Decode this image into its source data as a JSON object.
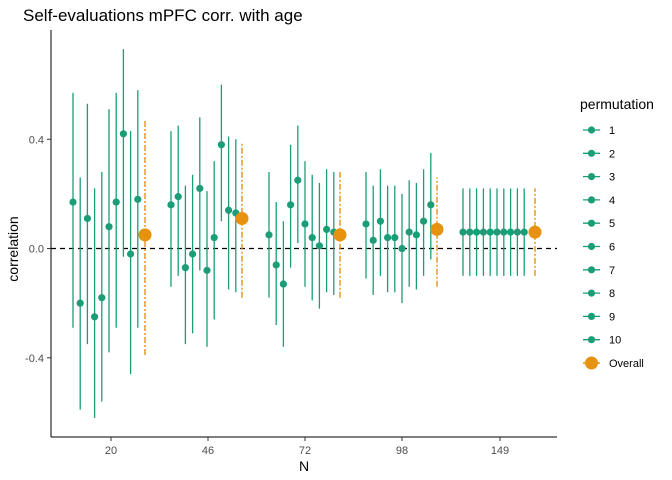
{
  "chart_data": {
    "type": "scatter",
    "title": "Self-evaluations mPFC corr. with age",
    "xlabel": "N",
    "ylabel": "correlation",
    "categories": [
      "20",
      "46",
      "72",
      "98",
      "149"
    ],
    "y_ticks": [
      -0.4,
      0.0,
      0.4
    ],
    "y_tick_labels": [
      "-0.4",
      "0.0",
      "0.4"
    ],
    "ylim": [
      -0.69,
      0.8
    ],
    "reference_line": 0.0,
    "grid": false,
    "legend": {
      "title": "permutation",
      "position": "right",
      "entries": [
        "1",
        "2",
        "3",
        "4",
        "5",
        "6",
        "7",
        "8",
        "9",
        "10",
        "Overall"
      ]
    },
    "colors": {
      "permutation": "#1b9e77",
      "overall": "#e6920f"
    },
    "series": [
      {
        "name": "20",
        "permutations": [
          {
            "r": 0.17,
            "lo": -0.29,
            "hi": 0.57
          },
          {
            "r": -0.2,
            "lo": -0.59,
            "hi": 0.26
          },
          {
            "r": 0.11,
            "lo": -0.35,
            "hi": 0.53
          },
          {
            "r": -0.25,
            "lo": -0.62,
            "hi": 0.22
          },
          {
            "r": -0.18,
            "lo": -0.56,
            "hi": 0.28
          },
          {
            "r": 0.08,
            "lo": -0.38,
            "hi": 0.51
          },
          {
            "r": 0.17,
            "lo": -0.29,
            "hi": 0.57
          },
          {
            "r": 0.42,
            "lo": -0.03,
            "hi": 0.73
          },
          {
            "r": -0.02,
            "lo": -0.46,
            "hi": 0.43
          },
          {
            "r": 0.18,
            "lo": -0.29,
            "hi": 0.58
          }
        ],
        "overall": {
          "r": 0.05,
          "lo": -0.39,
          "hi": 0.47
        }
      },
      {
        "name": "46",
        "permutations": [
          {
            "r": 0.16,
            "lo": -0.14,
            "hi": 0.43
          },
          {
            "r": 0.19,
            "lo": -0.1,
            "hi": 0.45
          },
          {
            "r": -0.07,
            "lo": -0.35,
            "hi": 0.23
          },
          {
            "r": -0.02,
            "lo": -0.31,
            "hi": 0.27
          },
          {
            "r": 0.22,
            "lo": -0.08,
            "hi": 0.48
          },
          {
            "r": -0.08,
            "lo": -0.36,
            "hi": 0.21
          },
          {
            "r": 0.04,
            "lo": -0.26,
            "hi": 0.32
          },
          {
            "r": 0.38,
            "lo": 0.1,
            "hi": 0.6
          },
          {
            "r": 0.14,
            "lo": -0.15,
            "hi": 0.41
          },
          {
            "r": 0.13,
            "lo": -0.16,
            "hi": 0.4
          }
        ],
        "overall": {
          "r": 0.11,
          "lo": -0.18,
          "hi": 0.39
        }
      },
      {
        "name": "72",
        "permutations": [
          {
            "r": 0.05,
            "lo": -0.18,
            "hi": 0.28
          },
          {
            "r": -0.06,
            "lo": -0.28,
            "hi": 0.17
          },
          {
            "r": -0.13,
            "lo": -0.36,
            "hi": 0.1
          },
          {
            "r": 0.16,
            "lo": -0.07,
            "hi": 0.38
          },
          {
            "r": 0.25,
            "lo": 0.02,
            "hi": 0.45
          },
          {
            "r": 0.09,
            "lo": -0.14,
            "hi": 0.32
          },
          {
            "r": 0.04,
            "lo": -0.19,
            "hi": 0.27
          },
          {
            "r": 0.01,
            "lo": -0.22,
            "hi": 0.24
          },
          {
            "r": 0.07,
            "lo": -0.16,
            "hi": 0.29
          },
          {
            "r": 0.06,
            "lo": -0.17,
            "hi": 0.28
          }
        ],
        "overall": {
          "r": 0.05,
          "lo": -0.18,
          "hi": 0.28
        }
      },
      {
        "name": "98",
        "permutations": [
          {
            "r": 0.09,
            "lo": -0.11,
            "hi": 0.28
          },
          {
            "r": 0.03,
            "lo": -0.17,
            "hi": 0.23
          },
          {
            "r": 0.1,
            "lo": -0.1,
            "hi": 0.29
          },
          {
            "r": 0.04,
            "lo": -0.16,
            "hi": 0.23
          },
          {
            "r": 0.04,
            "lo": -0.16,
            "hi": 0.23
          },
          {
            "r": 0.0,
            "lo": -0.2,
            "hi": 0.2
          },
          {
            "r": 0.06,
            "lo": -0.14,
            "hi": 0.25
          },
          {
            "r": 0.05,
            "lo": -0.15,
            "hi": 0.24
          },
          {
            "r": 0.1,
            "lo": -0.1,
            "hi": 0.29
          },
          {
            "r": 0.16,
            "lo": -0.04,
            "hi": 0.35
          }
        ],
        "overall": {
          "r": 0.07,
          "lo": -0.14,
          "hi": 0.26
        }
      },
      {
        "name": "149",
        "permutations": [
          {
            "r": 0.06,
            "lo": -0.1,
            "hi": 0.22
          },
          {
            "r": 0.06,
            "lo": -0.1,
            "hi": 0.22
          },
          {
            "r": 0.06,
            "lo": -0.1,
            "hi": 0.22
          },
          {
            "r": 0.06,
            "lo": -0.1,
            "hi": 0.22
          },
          {
            "r": 0.06,
            "lo": -0.1,
            "hi": 0.22
          },
          {
            "r": 0.06,
            "lo": -0.1,
            "hi": 0.22
          },
          {
            "r": 0.06,
            "lo": -0.1,
            "hi": 0.22
          },
          {
            "r": 0.06,
            "lo": -0.1,
            "hi": 0.22
          },
          {
            "r": 0.06,
            "lo": -0.1,
            "hi": 0.22
          },
          {
            "r": 0.06,
            "lo": -0.1,
            "hi": 0.22
          }
        ],
        "overall": {
          "r": 0.06,
          "lo": -0.1,
          "hi": 0.22
        }
      }
    ]
  }
}
